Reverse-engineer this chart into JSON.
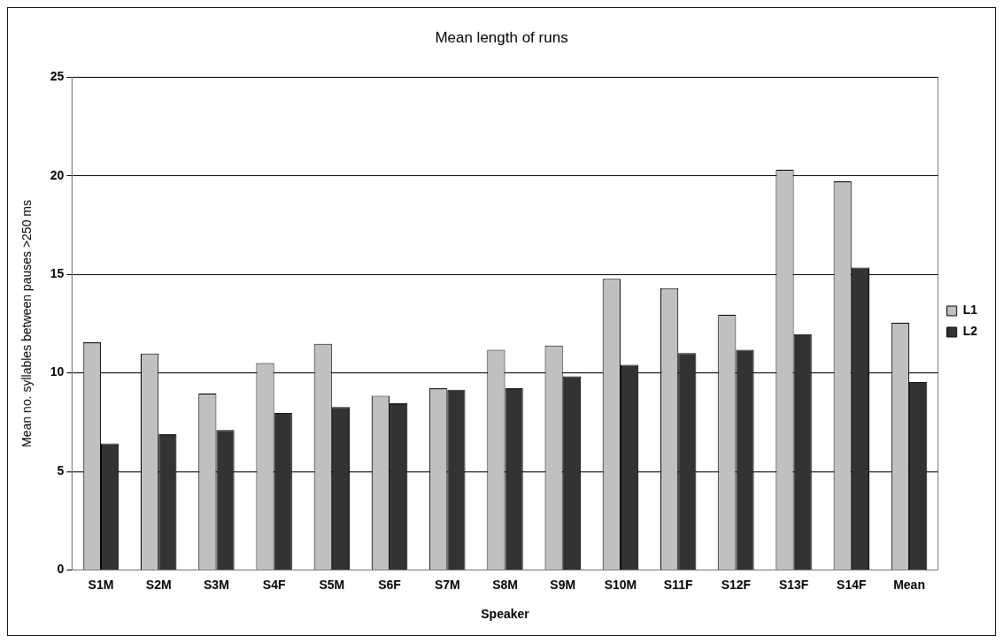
{
  "chart_data": {
    "type": "bar",
    "title": "Mean length of runs",
    "xlabel": "Speaker",
    "ylabel": "Mean no. syllables between pauses >250 ms",
    "categories": [
      "S1M",
      "S2M",
      "S3M",
      "S4F",
      "S5M",
      "S6F",
      "S7M",
      "S8M",
      "S9M",
      "S10M",
      "S11F",
      "S12F",
      "S13F",
      "S14F",
      "Mean"
    ],
    "series": [
      {
        "name": "L1",
        "color": "#c0c0c0",
        "values": [
          11.55,
          10.98,
          8.95,
          10.5,
          11.47,
          8.84,
          9.22,
          11.17,
          11.38,
          14.77,
          14.3,
          12.94,
          20.31,
          19.72,
          12.54
        ]
      },
      {
        "name": "L2",
        "color": "#333333",
        "values": [
          6.41,
          6.89,
          7.1,
          7.96,
          8.26,
          8.46,
          9.14,
          9.22,
          9.83,
          10.41,
          11.0,
          11.17,
          11.97,
          15.35,
          9.53
        ]
      }
    ],
    "ylim": [
      0,
      25
    ],
    "yticks": [
      0,
      5,
      10,
      15,
      20,
      25
    ],
    "grid": "y",
    "legend": "right"
  }
}
